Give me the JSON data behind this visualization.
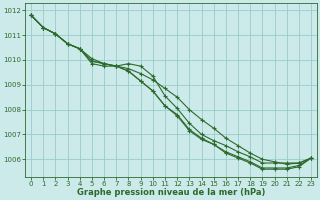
{
  "lines": [
    {
      "x": [
        0,
        1,
        2,
        3,
        4,
        5,
        6,
        7,
        8,
        9,
        10,
        11,
        12,
        13,
        14,
        15,
        16,
        17,
        18,
        19,
        20,
        21,
        22,
        23
      ],
      "y": [
        1011.8,
        1011.3,
        1011.05,
        1010.65,
        1010.45,
        1009.85,
        1009.75,
        1009.75,
        1009.85,
        1009.75,
        1009.35,
        1008.55,
        1008.05,
        1007.45,
        1007.0,
        1006.75,
        1006.55,
        1006.3,
        1006.1,
        1005.85,
        1005.85,
        1005.85,
        1005.85,
        1006.05
      ]
    },
    {
      "x": [
        0,
        1,
        2,
        3,
        4,
        5,
        6,
        7,
        8,
        9,
        10,
        11,
        12,
        13,
        14,
        15,
        16,
        17,
        18,
        19,
        20,
        21,
        22,
        23
      ],
      "y": [
        1011.8,
        1011.3,
        1011.05,
        1010.65,
        1010.45,
        1010.05,
        1009.85,
        1009.75,
        1009.65,
        1009.45,
        1009.2,
        1008.85,
        1008.5,
        1008.0,
        1007.6,
        1007.25,
        1006.85,
        1006.55,
        1006.25,
        1006.0,
        1005.9,
        1005.8,
        1005.85,
        1006.05
      ]
    },
    {
      "x": [
        0,
        1,
        2,
        3,
        4,
        5,
        6,
        7,
        8,
        9,
        10,
        11,
        12,
        13,
        14,
        15,
        16,
        17,
        18,
        19,
        20,
        21,
        22,
        23
      ],
      "y": [
        1011.8,
        1011.3,
        1011.05,
        1010.65,
        1010.45,
        1009.95,
        1009.85,
        1009.75,
        1009.55,
        1009.15,
        1008.75,
        1008.15,
        1007.8,
        1007.2,
        1006.85,
        1006.6,
        1006.3,
        1006.1,
        1005.9,
        1005.65,
        1005.65,
        1005.65,
        1005.75,
        1006.05
      ]
    },
    {
      "x": [
        0,
        1,
        2,
        3,
        4,
        5,
        6,
        7,
        8,
        9,
        10,
        11,
        12,
        13,
        14,
        15,
        16,
        17,
        18,
        19,
        20,
        21,
        22,
        23
      ],
      "y": [
        1011.8,
        1011.3,
        1011.05,
        1010.65,
        1010.45,
        1009.95,
        1009.85,
        1009.75,
        1009.55,
        1009.15,
        1008.75,
        1008.15,
        1007.75,
        1007.15,
        1006.8,
        1006.6,
        1006.25,
        1006.05,
        1005.85,
        1005.6,
        1005.6,
        1005.6,
        1005.7,
        1006.05
      ]
    }
  ],
  "line_color": "#2d6a2d",
  "bg_color": "#cceaea",
  "grid_color": "#99cccc",
  "xlabel": "Graphe pression niveau de la mer (hPa)",
  "xlabel_color": "#2d6a2d",
  "tick_color": "#2d6a2d",
  "ylim": [
    1005.3,
    1012.3
  ],
  "yticks": [
    1006,
    1007,
    1008,
    1009,
    1010,
    1011,
    1012
  ],
  "xticks": [
    0,
    1,
    2,
    3,
    4,
    5,
    6,
    7,
    8,
    9,
    10,
    11,
    12,
    13,
    14,
    15,
    16,
    17,
    18,
    19,
    20,
    21,
    22,
    23
  ],
  "marker_size": 2.5,
  "line_width": 0.8,
  "figsize": [
    3.2,
    2.0
  ],
  "dpi": 100
}
